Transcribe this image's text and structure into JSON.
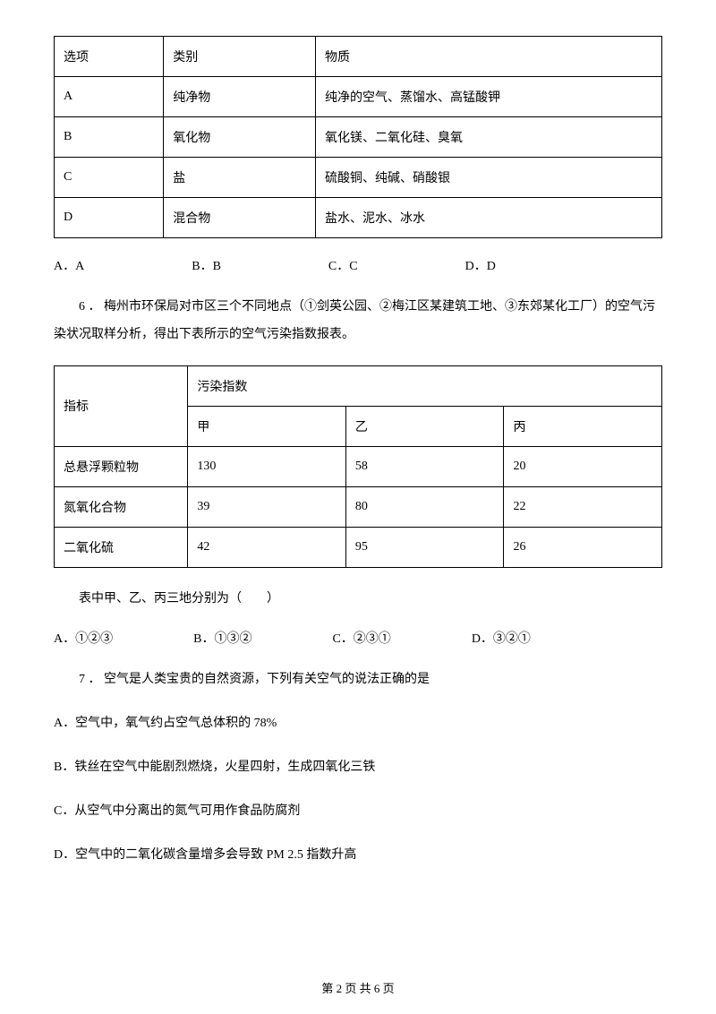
{
  "table1": {
    "headers": [
      "选项",
      "类别",
      "物质"
    ],
    "rows": [
      [
        "A",
        "纯净物",
        "纯净的空气、蒸馏水、高锰酸钾"
      ],
      [
        "B",
        "氧化物",
        "氧化镁、二氧化硅、臭氧"
      ],
      [
        "C",
        "盐",
        "硫酸铜、纯碱、硝酸银"
      ],
      [
        "D",
        "混合物",
        "盐水、泥水、冰水"
      ]
    ]
  },
  "q5_options": {
    "a": "A．A",
    "b": "B．B",
    "c": "C．C",
    "d": "D．D"
  },
  "q6_intro": "6 ． 梅州市环保局对市区三个不同地点（①剑英公园、②梅江区某建筑工地、③东郊某化工厂）的空气污染状况取样分析，得出下表所示的空气污染指数报表。",
  "table2": {
    "metric_header": "指标",
    "pollution_header": "污染指数",
    "cols": [
      "甲",
      "乙",
      "丙"
    ],
    "rows": [
      {
        "metric": "总悬浮颗粒物",
        "vals": [
          "130",
          "58",
          "20"
        ]
      },
      {
        "metric": "氮氧化合物",
        "vals": [
          "39",
          "80",
          "22"
        ]
      },
      {
        "metric": "二氧化硫",
        "vals": [
          "42",
          "95",
          "26"
        ]
      }
    ]
  },
  "q6_ask": "表中甲、乙、丙三地分别为（　　）",
  "q6_options": {
    "a": "A．①②③",
    "b": "B．①③②",
    "c": "C．②③①",
    "d": "D．③②①"
  },
  "q7_intro": "7 ． 空气是人类宝贵的自然资源，下列有关空气的说法正确的是",
  "q7_a": "A．空气中，氧气约占空气总体积的 78%",
  "q7_b": "B．铁丝在空气中能剧烈燃烧，火星四射，生成四氧化三铁",
  "q7_c": "C．从空气中分离出的氮气可用作食品防腐剂",
  "q7_d": "D．空气中的二氧化碳含量增多会导致 PM 2.5 指数升高",
  "footer": "第 2 页 共 6 页"
}
